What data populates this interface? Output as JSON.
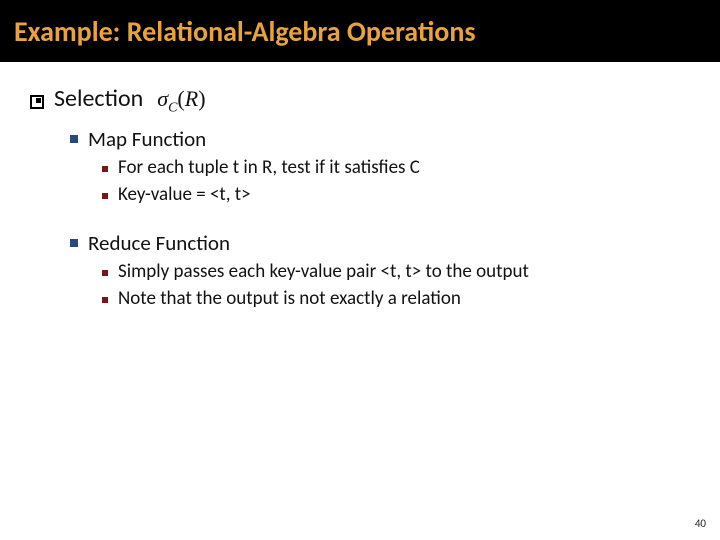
{
  "slide": {
    "title": "Example: Relational-Algebra Operations",
    "page_number": "40",
    "background_color": "#ffffff",
    "header": {
      "background_color": "#000000",
      "title_color": "#e8a33d",
      "title_fontsize": 28,
      "title_fontweight": 700
    },
    "bullets": {
      "l1_color": "#000000",
      "l2_color": "#29497a",
      "l3_color": "#7a1616",
      "l1_fontsize": 24,
      "l2_fontsize": 21,
      "l3_fontsize": 19
    },
    "section": {
      "heading": "Selection",
      "formula": {
        "symbol": "σ",
        "subscript": "C",
        "arg": "R"
      },
      "subsections": [
        {
          "title": "Map Function",
          "items": [
            "For each tuple t in R, test if it satisfies C",
            "Key-value = <t, t>"
          ]
        },
        {
          "title": "Reduce Function",
          "items": [
            "Simply passes each key-value pair <t, t> to the output",
            "Note that the output is not exactly a relation"
          ]
        }
      ]
    }
  }
}
